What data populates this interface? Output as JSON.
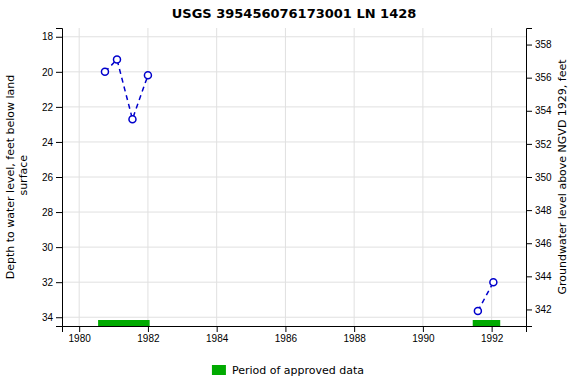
{
  "chart_data": {
    "type": "line",
    "title": "USGS 395456076173001 LN  1428",
    "xlim": [
      1979.5,
      1993.0
    ],
    "xticks": [
      1980,
      1982,
      1984,
      1986,
      1988,
      1990,
      1992
    ],
    "ylim": [
      34.5,
      17.5
    ],
    "yticks": [
      18,
      20,
      22,
      24,
      26,
      28,
      30,
      32,
      34
    ],
    "ylabel": "Depth to water level, feet below land\n surface",
    "y2lim": [
      341.0,
      359.0
    ],
    "y2ticks": [
      342,
      344,
      346,
      348,
      350,
      352,
      354,
      356,
      358
    ],
    "y2label": "Groundwater level above NGVD 1929, feet",
    "grid": true,
    "series": [
      {
        "x": [
          1980.75,
          1981.1,
          1981.55,
          1982.0
        ],
        "values": [
          20.0,
          19.3,
          22.7,
          20.2
        ],
        "color": "#0000CC",
        "line_style": "dashed",
        "marker": "circle"
      },
      {
        "x": [
          1991.6,
          1992.05
        ],
        "values": [
          33.65,
          32.0
        ],
        "color": "#0000CC",
        "line_style": "dashed",
        "marker": "circle"
      },
      {
        "name": "Period of approved data",
        "type": "span",
        "color": "#00AA00",
        "ranges": [
          [
            1980.55,
            1982.05
          ],
          [
            1991.45,
            1992.25
          ]
        ]
      }
    ]
  }
}
